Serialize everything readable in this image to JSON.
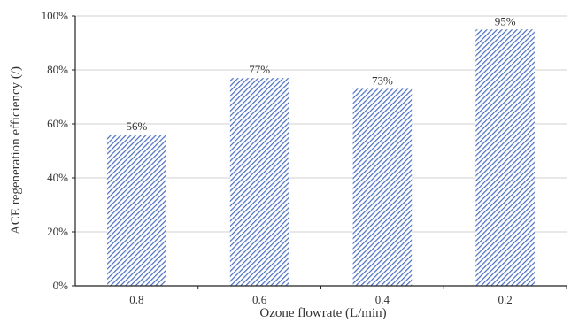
{
  "chart_data": {
    "type": "bar",
    "categories": [
      "0.8",
      "0.6",
      "0.4",
      "0.2"
    ],
    "values": [
      56,
      77,
      73,
      95
    ],
    "data_labels": [
      "56%",
      "77%",
      "73%",
      "95%"
    ],
    "title": "",
    "xlabel": "Ozone flowrate (L/min)",
    "ylabel": "ACE regeneration efficiency (/)",
    "ylim": [
      0,
      100
    ],
    "yticks": [
      0,
      20,
      40,
      60,
      80,
      100
    ],
    "ytick_labels": [
      "0%",
      "20%",
      "40%",
      "60%",
      "80%",
      "100%"
    ],
    "grid": true,
    "legend": "none",
    "bar_color": "#4a6fc2",
    "bar_pattern": "diagonal-hatch"
  }
}
